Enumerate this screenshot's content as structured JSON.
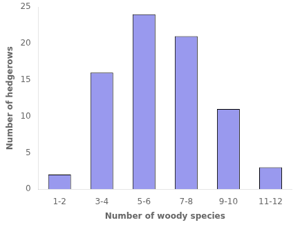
{
  "chart_data": {
    "type": "bar",
    "categories": [
      "1-2",
      "3-4",
      "5-6",
      "7-8",
      "9-10",
      "11-12"
    ],
    "values": [
      2,
      16,
      24,
      21,
      11,
      3
    ],
    "color": "#9999ee",
    "xlabel": "Number of woody species",
    "ylabel": "Number of hedgerows",
    "ylim": [
      0,
      25
    ],
    "yticks": [
      0,
      5,
      10,
      15,
      20,
      25
    ],
    "grid": false
  }
}
